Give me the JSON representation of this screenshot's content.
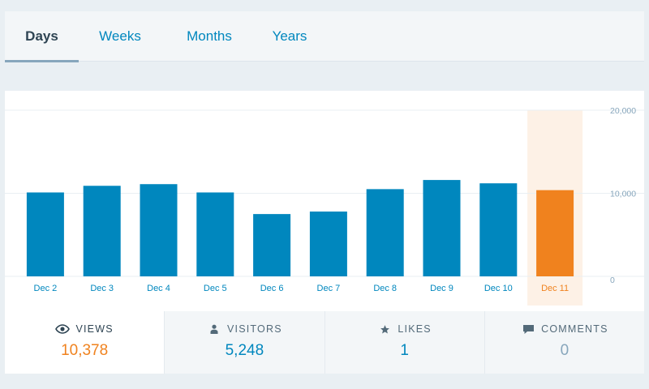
{
  "period_tabs": [
    {
      "label": "Days",
      "active": true
    },
    {
      "label": "Weeks",
      "active": false
    },
    {
      "label": "Months",
      "active": false
    },
    {
      "label": "Years",
      "active": false
    }
  ],
  "chart_data": {
    "type": "bar",
    "categories": [
      "Dec 2",
      "Dec 3",
      "Dec 4",
      "Dec 5",
      "Dec 6",
      "Dec 7",
      "Dec 8",
      "Dec 9",
      "Dec 10",
      "Dec 11"
    ],
    "values": [
      10100,
      10900,
      11100,
      10100,
      7500,
      7800,
      10500,
      11600,
      11200,
      10378
    ],
    "highlighted_index": 9,
    "ylim": [
      0,
      20000
    ],
    "yticks": [
      "0",
      "10,000",
      "20,000"
    ],
    "ytick_values": [
      0,
      10000,
      20000
    ],
    "grid": true,
    "colors": {
      "bar": "#0087be",
      "highlight": "#f0821e",
      "highlight_band": "#fdf1e6",
      "grid": "#e9eff3",
      "axis_label": "#87a6bc",
      "category_label": "#0087be",
      "highlight_label": "#f0821e"
    }
  },
  "stats": [
    {
      "key": "views",
      "label": "Views",
      "value": "10,378",
      "icon": "eye-icon"
    },
    {
      "key": "visitors",
      "label": "Visitors",
      "value": "5,248",
      "icon": "person-icon"
    },
    {
      "key": "likes",
      "label": "Likes",
      "value": "1",
      "icon": "star-icon"
    },
    {
      "key": "comments",
      "label": "Comments",
      "value": "0",
      "icon": "comment-icon"
    }
  ]
}
